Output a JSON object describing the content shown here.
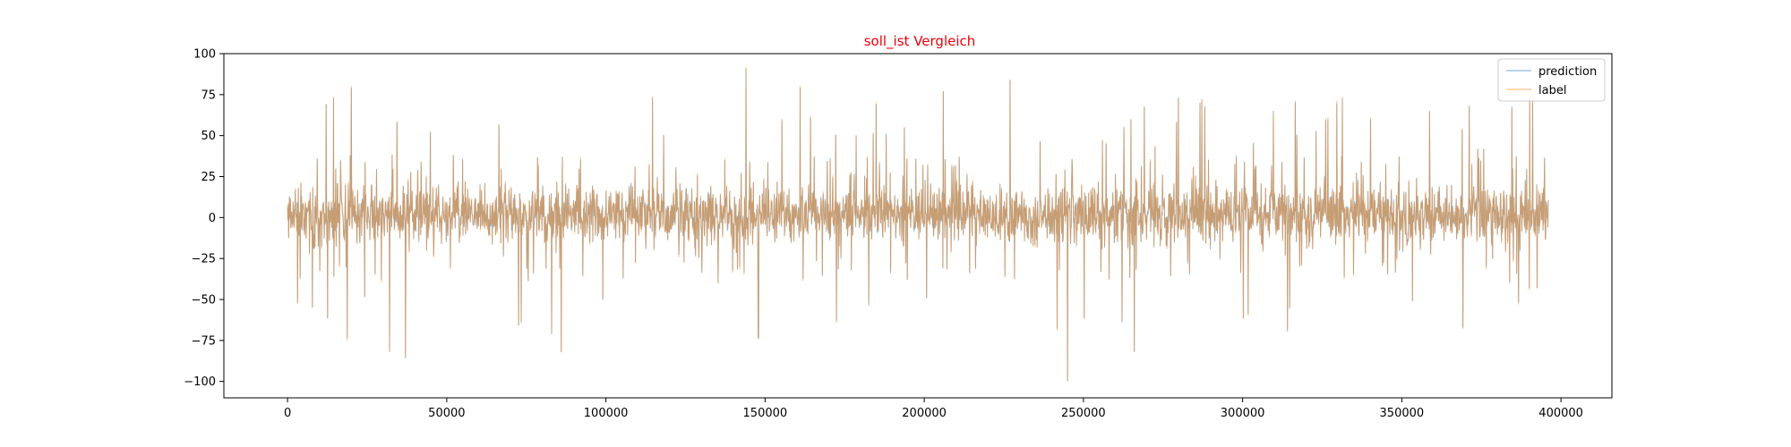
{
  "chart_data": {
    "type": "line",
    "title": "soll_ist Vergleich",
    "title_color": "#e8000b",
    "xlabel": "",
    "ylabel": "",
    "xlim": [
      -20000,
      416000
    ],
    "ylim": [
      -110,
      100
    ],
    "xticks": [
      0,
      50000,
      100000,
      150000,
      200000,
      250000,
      300000,
      350000,
      400000
    ],
    "xtick_labels": [
      "0",
      "50000",
      "100000",
      "150000",
      "200000",
      "250000",
      "300000",
      "350000",
      "400000"
    ],
    "yticks": [
      100,
      75,
      50,
      25,
      0,
      -25,
      -50,
      -75,
      -100
    ],
    "ytick_labels": [
      "100",
      "75",
      "50",
      "25",
      "0",
      "−25",
      "−50",
      "−75",
      "−100"
    ],
    "grid": false,
    "legend_position": "top-right",
    "x_range_data": [
      0,
      396000
    ],
    "series": [
      {
        "name": "prediction",
        "color": "#1f77b4",
        "opacity": 0.5,
        "seed": 11
      },
      {
        "name": "label",
        "color": "#ff7f0e",
        "opacity": 0.5,
        "seed": 11
      }
    ],
    "noted_peaks": [
      {
        "x": 144000,
        "y": 91
      },
      {
        "x": 227000,
        "y": 84
      },
      {
        "x": 20000,
        "y": 79
      },
      {
        "x": 161000,
        "y": 79
      },
      {
        "x": 206000,
        "y": 77
      },
      {
        "x": 245000,
        "y": -100
      },
      {
        "x": 37000,
        "y": -86
      },
      {
        "x": 32000,
        "y": -82
      },
      {
        "x": 86000,
        "y": -82
      },
      {
        "x": 266000,
        "y": -82
      }
    ]
  }
}
